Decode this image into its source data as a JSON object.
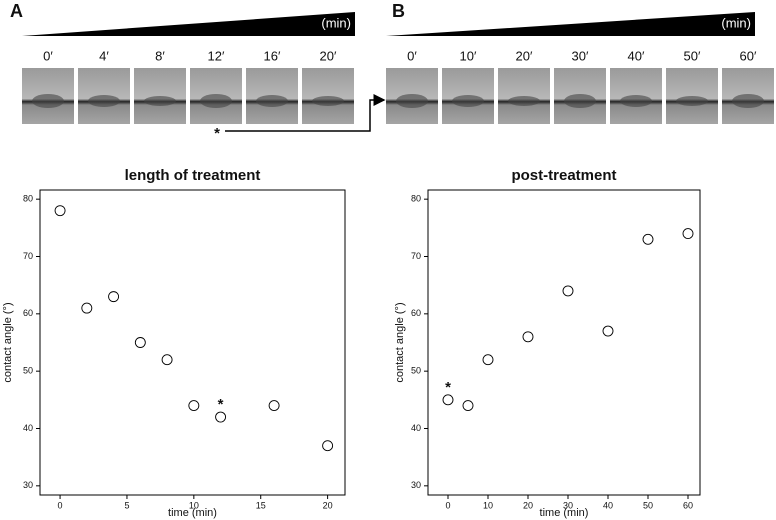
{
  "panels": [
    {
      "label": "A",
      "unit": "(min)",
      "times": [
        "0′",
        "4′",
        "8′",
        "12′",
        "16′",
        "20′"
      ],
      "marker": "*"
    },
    {
      "label": "B",
      "unit": "(min)",
      "times": [
        "0′",
        "10′",
        "20′",
        "30′",
        "40′",
        "50′",
        "60′"
      ]
    }
  ],
  "chart_data": [
    {
      "type": "scatter",
      "title": "length of treatment",
      "x_label": "time (min)",
      "y_label": "contact angle (°)",
      "color": "#000000",
      "x": [
        0,
        2,
        4,
        6,
        8,
        10,
        12,
        16,
        20
      ],
      "values": [
        78,
        61,
        63,
        55,
        52,
        44,
        42,
        44,
        37
      ],
      "xlim": [
        -1.5,
        21.3
      ],
      "xticks": [
        0,
        5,
        10,
        15,
        20
      ],
      "ylim": [
        28.4,
        81.6
      ],
      "yticks": [
        30,
        40,
        50,
        60,
        70,
        80
      ],
      "annotations": [
        {
          "text": "*",
          "x": 12,
          "y": 42
        }
      ]
    },
    {
      "type": "scatter",
      "title": "post-treatment",
      "x_label": "time (min)",
      "y_label": "contact angle (°)",
      "color": "#000000",
      "x": [
        0,
        5,
        10,
        20,
        30,
        40,
        50,
        60
      ],
      "values": [
        45,
        44,
        52,
        56,
        64,
        57,
        73,
        74
      ],
      "xlim": [
        -5,
        63
      ],
      "xticks": [
        0,
        10,
        20,
        30,
        40,
        50,
        60
      ],
      "ylim": [
        28.4,
        81.6
      ],
      "yticks": [
        30,
        40,
        50,
        60,
        70,
        80
      ],
      "annotations": [
        {
          "text": "*",
          "x": 0,
          "y": 45
        }
      ]
    }
  ]
}
